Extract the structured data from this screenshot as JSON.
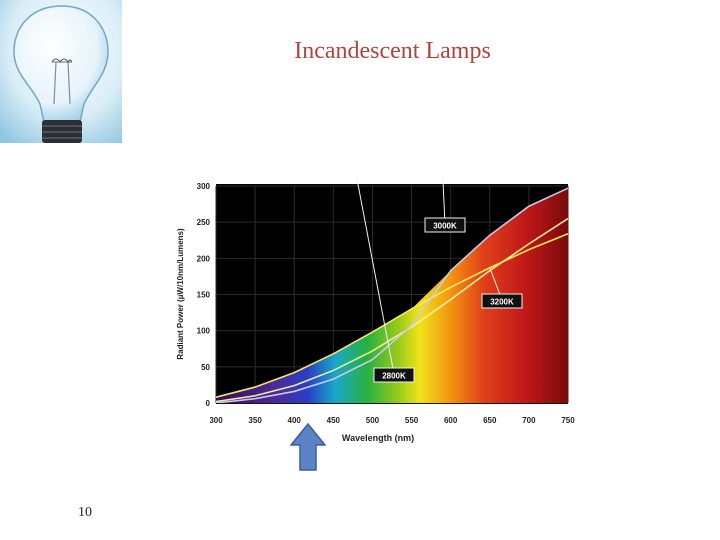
{
  "slide": {
    "title": "Incandescent Lamps",
    "page_number": "10"
  },
  "icons": {
    "lamp": "light-bulb-image",
    "pointer": "up-arrow"
  },
  "colors": {
    "title": "#b0443a",
    "plot_background": "#000000",
    "arrow": "#5b83c6"
  },
  "chart_data": {
    "type": "line",
    "title": "",
    "xlabel": "Wavelength (nm)",
    "ylabel": "Radiant Power (µW/10nm/Lumens)",
    "xlim": [
      300,
      750
    ],
    "ylim": [
      0,
      300
    ],
    "x_ticks": [
      300,
      350,
      400,
      450,
      500,
      550,
      600,
      650,
      700,
      750
    ],
    "y_ticks": [
      0,
      50,
      100,
      150,
      200,
      250,
      300
    ],
    "grid": true,
    "background": "visible spectrum gradient under curves",
    "series": [
      {
        "name": "3000K",
        "x": [
          300,
          350,
          400,
          450,
          500,
          550,
          600,
          650,
          700,
          750
        ],
        "values": [
          2,
          10,
          24,
          45,
          72,
          105,
          143,
          183,
          220,
          255
        ]
      },
      {
        "name": "3200K",
        "x": [
          300,
          350,
          400,
          450,
          500,
          550,
          600,
          650,
          700,
          750
        ],
        "values": [
          8,
          22,
          42,
          68,
          98,
          130,
          160,
          187,
          212,
          234
        ]
      },
      {
        "name": "2800K",
        "x": [
          300,
          350,
          400,
          450,
          500,
          550,
          600,
          650,
          700,
          750
        ],
        "values": [
          0,
          6,
          16,
          33,
          60,
          107,
          183,
          232,
          272,
          297
        ]
      }
    ],
    "annotations": [
      "3000K",
      "3200K",
      "2800K"
    ]
  }
}
